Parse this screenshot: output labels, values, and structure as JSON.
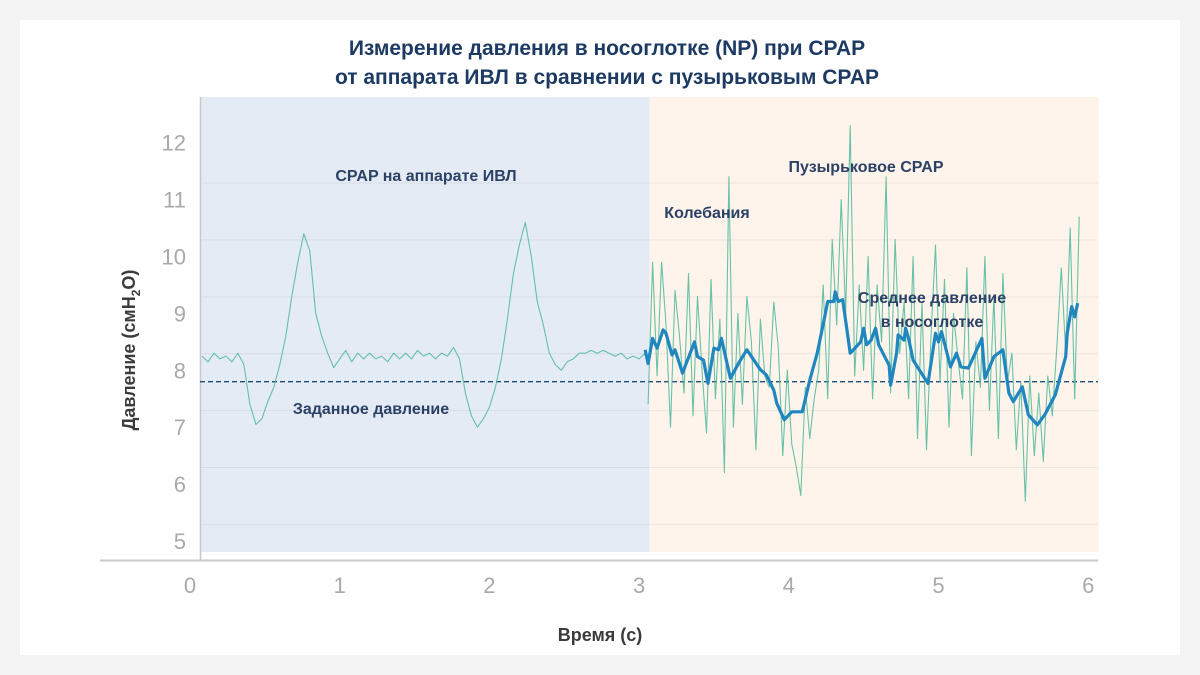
{
  "chart_data": {
    "type": "line",
    "title_line1": "Измерение давления в носоглотке (NP) при CPAP",
    "title_line2": "от аппарата ИВЛ в сравнении с пузырьковым CPAP",
    "xlabel": "Время (с)",
    "ylabel_main": "Давление (смH",
    "ylabel_sub": "2",
    "ylabel_end": "O)",
    "xlim": [
      0,
      6
    ],
    "ylim": [
      5,
      12
    ],
    "x_ticks": [
      "0",
      "1",
      "2",
      "3",
      "4",
      "5",
      "6"
    ],
    "y_ticks": [
      "5",
      "6",
      "7",
      "8",
      "9",
      "10",
      "11",
      "12"
    ],
    "regions": [
      {
        "name": "CPAP на аппарате ИВЛ",
        "from": 0.07,
        "to": 3.07,
        "color": "#e5ebf5"
      },
      {
        "name": "Пузырьковое CPAP",
        "from": 3.07,
        "to": 6.07,
        "color": "#fef4ec"
      }
    ],
    "set_pressure": {
      "label": "Заданное давление",
      "value": 7.8,
      "color": "#1d4f7a"
    },
    "annotations": {
      "oscillations": "Колебания",
      "mean_line1": "Среднее давление",
      "mean_line2": "в носоглотке"
    },
    "series": [
      {
        "name": "ventilator_np",
        "color": "#4db89a",
        "t_start": 0.08,
        "t_step": 0.04,
        "values": [
          8.25,
          8.15,
          8.3,
          8.2,
          8.25,
          8.15,
          8.3,
          8.1,
          7.4,
          7.05,
          7.15,
          7.45,
          7.7,
          8.1,
          8.6,
          9.3,
          9.9,
          10.4,
          10.1,
          9.0,
          8.6,
          8.3,
          8.05,
          8.2,
          8.35,
          8.15,
          8.3,
          8.2,
          8.3,
          8.2,
          8.25,
          8.15,
          8.3,
          8.2,
          8.3,
          8.2,
          8.35,
          8.25,
          8.3,
          8.2,
          8.3,
          8.25,
          8.4,
          8.2,
          7.6,
          7.2,
          7.0,
          7.15,
          7.35,
          7.7,
          8.2,
          8.9,
          9.7,
          10.2,
          10.6,
          10.0,
          9.2,
          8.8,
          8.3,
          8.1,
          8.0,
          8.15,
          8.2,
          8.3,
          8.3,
          8.35,
          8.3,
          8.35,
          8.3,
          8.25,
          8.3,
          8.2,
          8.25,
          8.2,
          8.3
        ]
      },
      {
        "name": "bubble_np",
        "color": "#4db89a",
        "t_start": 3.06,
        "t_step": 0.03,
        "values": [
          7.4,
          9.9,
          7.9,
          9.9,
          8.8,
          7.0,
          9.4,
          8.6,
          7.6,
          9.7,
          7.2,
          9.3,
          8.0,
          6.9,
          9.6,
          7.5,
          8.9,
          6.2,
          11.4,
          7.0,
          9.0,
          7.4,
          9.3,
          8.5,
          6.6,
          8.9,
          7.9,
          7.7,
          9.2,
          8.4,
          6.5,
          8.0,
          6.7,
          6.3,
          5.8,
          7.7,
          6.8,
          7.5,
          8.0,
          9.5,
          7.5,
          10.3,
          8.8,
          11.0,
          9.0,
          12.3,
          7.9,
          9.5,
          8.0,
          10.0,
          7.5,
          9.5,
          8.5,
          11.4,
          7.6,
          10.3,
          8.3,
          9.2,
          7.5,
          10.0,
          6.8,
          9.2,
          6.6,
          8.6,
          10.2,
          7.8,
          9.6,
          7.0,
          9.0,
          8.2,
          7.5,
          9.8,
          6.5,
          8.5,
          7.7,
          10.0,
          7.3,
          9.3,
          6.8,
          9.7,
          7.8,
          8.3,
          6.6,
          7.8,
          5.7,
          7.9,
          6.5,
          7.6,
          6.4,
          7.9,
          7.2,
          8.4,
          9.8,
          8.3,
          10.5,
          7.5,
          10.7
        ]
      },
      {
        "name": "mean_np",
        "color": "#1f86bf",
        "points": [
          [
            3.04,
            8.36
          ],
          [
            3.06,
            8.12
          ],
          [
            3.09,
            8.56
          ],
          [
            3.12,
            8.39
          ],
          [
            3.16,
            8.71
          ],
          [
            3.18,
            8.65
          ],
          [
            3.22,
            8.27
          ],
          [
            3.24,
            8.36
          ],
          [
            3.29,
            7.95
          ],
          [
            3.37,
            8.5
          ],
          [
            3.39,
            8.24
          ],
          [
            3.43,
            8.18
          ],
          [
            3.46,
            7.77
          ],
          [
            3.5,
            8.39
          ],
          [
            3.53,
            8.36
          ],
          [
            3.55,
            8.56
          ],
          [
            3.61,
            7.86
          ],
          [
            3.67,
            8.15
          ],
          [
            3.72,
            8.36
          ],
          [
            3.81,
            8.01
          ],
          [
            3.85,
            7.92
          ],
          [
            3.9,
            7.65
          ],
          [
            3.92,
            7.42
          ],
          [
            3.97,
            7.13
          ],
          [
            4.02,
            7.27
          ],
          [
            4.09,
            7.27
          ],
          [
            4.14,
            7.83
          ],
          [
            4.19,
            8.3
          ],
          [
            4.24,
            8.94
          ],
          [
            4.26,
            9.21
          ],
          [
            4.3,
            9.21
          ],
          [
            4.31,
            9.38
          ],
          [
            4.33,
            9.21
          ],
          [
            4.36,
            9.24
          ],
          [
            4.41,
            8.3
          ],
          [
            4.48,
            8.5
          ],
          [
            4.5,
            8.74
          ],
          [
            4.52,
            8.45
          ],
          [
            4.55,
            8.53
          ],
          [
            4.58,
            8.74
          ],
          [
            4.6,
            8.45
          ],
          [
            4.67,
            8.09
          ],
          [
            4.68,
            7.74
          ],
          [
            4.72,
            8.3
          ],
          [
            4.73,
            8.62
          ],
          [
            4.77,
            8.53
          ],
          [
            4.78,
            8.74
          ],
          [
            4.8,
            8.56
          ],
          [
            4.83,
            8.18
          ],
          [
            4.93,
            7.77
          ],
          [
            4.98,
            8.65
          ],
          [
            5.0,
            8.5
          ],
          [
            5.02,
            8.68
          ],
          [
            5.08,
            8.06
          ],
          [
            5.12,
            8.3
          ],
          [
            5.15,
            8.06
          ],
          [
            5.2,
            8.04
          ],
          [
            5.29,
            8.56
          ],
          [
            5.31,
            7.86
          ],
          [
            5.37,
            8.24
          ],
          [
            5.43,
            8.36
          ],
          [
            5.47,
            7.6
          ],
          [
            5.5,
            7.45
          ],
          [
            5.56,
            7.71
          ],
          [
            5.6,
            7.22
          ],
          [
            5.66,
            7.04
          ],
          [
            5.71,
            7.22
          ],
          [
            5.78,
            7.57
          ],
          [
            5.85,
            8.24
          ],
          [
            5.86,
            8.65
          ],
          [
            5.89,
            9.12
          ],
          [
            5.91,
            8.94
          ],
          [
            5.93,
            9.18
          ]
        ]
      }
    ]
  }
}
